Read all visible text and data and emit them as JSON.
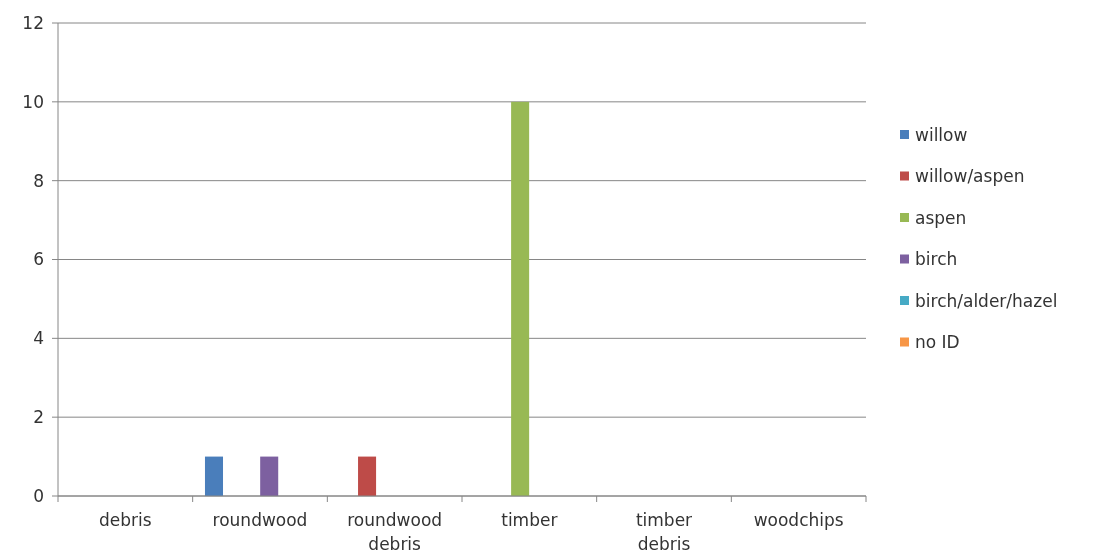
{
  "chart_data": {
    "type": "bar",
    "categories": [
      "debris",
      "roundwood",
      "roundwood debris",
      "timber",
      "timber debris",
      "woodchips"
    ],
    "series": [
      {
        "name": "willow",
        "color": "#4a7ebb",
        "values": [
          0,
          1,
          0,
          0,
          0,
          0
        ]
      },
      {
        "name": "willow/aspen",
        "color": "#be4b48",
        "values": [
          0,
          0,
          1,
          0,
          0,
          0
        ]
      },
      {
        "name": "aspen",
        "color": "#98b954",
        "values": [
          0,
          0,
          0,
          10,
          0,
          0
        ]
      },
      {
        "name": "birch",
        "color": "#7d60a0",
        "values": [
          0,
          1,
          0,
          0,
          0,
          0
        ]
      },
      {
        "name": "birch/alder/hazel",
        "color": "#46aac5",
        "values": [
          0,
          0,
          0,
          0,
          0,
          0
        ]
      },
      {
        "name": "no ID",
        "color": "#f79646",
        "values": [
          0,
          0,
          0,
          0,
          0,
          0
        ]
      }
    ],
    "ylim": [
      0,
      12
    ],
    "yticks": [
      0,
      2,
      4,
      6,
      8,
      10,
      12
    ],
    "grid": "y",
    "legend": "right"
  }
}
